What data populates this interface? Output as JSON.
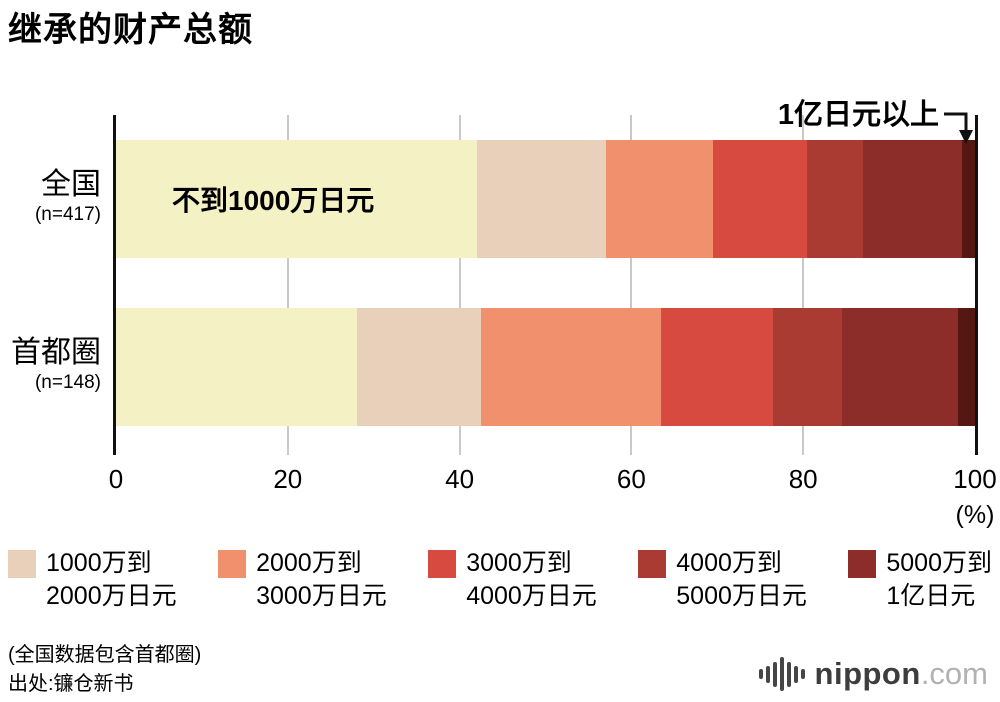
{
  "title": "继承的财产总额",
  "chart_data": {
    "type": "bar",
    "stacked": true,
    "orientation": "horizontal",
    "unit": "(%)",
    "xlim": [
      0,
      100
    ],
    "x_ticks": [
      0,
      20,
      40,
      60,
      80,
      100
    ],
    "grid": true,
    "segments": [
      {
        "label": "不到1000万日元",
        "color": "#f4f1c4"
      },
      {
        "label": "1000万到2000万日元",
        "color": "#e8d0ba"
      },
      {
        "label": "2000万到3000万日元",
        "color": "#f0906c"
      },
      {
        "label": "3000万到4000万日元",
        "color": "#d74a40"
      },
      {
        "label": "4000万到5000万日元",
        "color": "#aa3b33"
      },
      {
        "label": "5000万到1亿日元",
        "color": "#8c2d29"
      },
      {
        "label": "1亿日元以上",
        "color": "#551712"
      }
    ],
    "series": [
      {
        "name": "全国",
        "n_label": "(n=417)",
        "values": [
          42,
          15,
          12.5,
          11,
          6.5,
          11.5,
          1.5
        ]
      },
      {
        "name": "首都圈",
        "n_label": "(n=148)",
        "values": [
          28,
          14.5,
          21,
          13,
          8,
          13.5,
          2
        ]
      }
    ],
    "inbar_label": "不到1000万日元",
    "annotation_label": "1亿日元以上"
  },
  "legend": {
    "items": [
      {
        "segment": 1,
        "line1": "1000万到",
        "line2": "2000万日元"
      },
      {
        "segment": 2,
        "line1": "2000万到",
        "line2": "3000万日元"
      },
      {
        "segment": 3,
        "line1": "3000万到",
        "line2": "4000万日元"
      },
      {
        "segment": 4,
        "line1": "4000万到",
        "line2": "5000万日元"
      },
      {
        "segment": 5,
        "line1": "5000万到",
        "line2": "1亿日元"
      }
    ]
  },
  "footer": {
    "note1": "(全国数据包含首都圈)",
    "note2": "出处:镰仓新书",
    "logo_text": "nippon",
    "logo_suffix": ".com"
  }
}
